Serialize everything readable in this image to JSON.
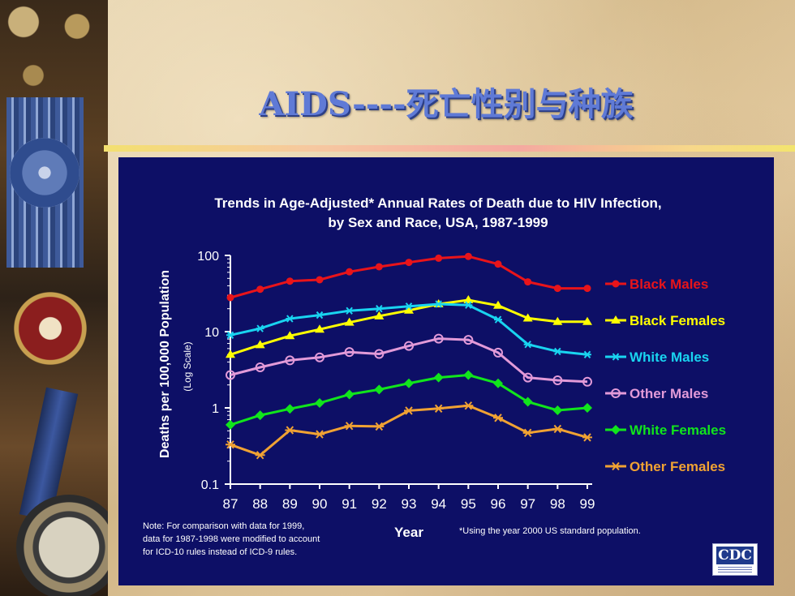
{
  "slide": {
    "title": "AIDS----死亡性别与种族"
  },
  "chart_data": {
    "type": "line",
    "title_line1": "Trends in Age-Adjusted* Annual Rates of Death due to HIV Infection,",
    "title_line2": "by Sex and Race, USA, 1987-1999",
    "ylabel": "Deaths per 100,000 Population",
    "ylabel_scale": "(Log Scale)",
    "xlabel": "Year",
    "yscale": "log",
    "ylim": [
      0.1,
      100
    ],
    "yticks": [
      100,
      10,
      1,
      0.1
    ],
    "ytick_labels": [
      "100",
      "10",
      "1",
      "0.1"
    ],
    "x": [
      "87",
      "88",
      "89",
      "90",
      "91",
      "92",
      "93",
      "94",
      "95",
      "96",
      "97",
      "98",
      "99"
    ],
    "legend_position": "right",
    "series": [
      {
        "name": "Black Males",
        "color": "#e8141a",
        "marker": "circle-filled",
        "values": [
          28,
          36,
          46,
          48,
          61,
          71,
          81,
          92,
          97,
          77,
          45,
          37,
          37
        ]
      },
      {
        "name": "Black Females",
        "color": "#ffff00",
        "marker": "triangle",
        "values": [
          5,
          6.7,
          8.8,
          10.7,
          13.2,
          16,
          19,
          23,
          26,
          22,
          15,
          13.5,
          13.5
        ]
      },
      {
        "name": "White Males",
        "color": "#19d4f0",
        "marker": "asterisk",
        "values": [
          9,
          11,
          14.8,
          16.5,
          18.8,
          20,
          21.5,
          23,
          22.3,
          14.4,
          6.8,
          5.5,
          5
        ]
      },
      {
        "name": "Other Males",
        "color": "#e29ad8",
        "marker": "circle-open",
        "values": [
          2.7,
          3.4,
          4.2,
          4.6,
          5.4,
          5.1,
          6.5,
          8.1,
          7.8,
          5.3,
          2.5,
          2.3,
          2.2
        ]
      },
      {
        "name": "White Females",
        "color": "#11e51c",
        "marker": "diamond",
        "values": [
          0.6,
          0.8,
          0.97,
          1.16,
          1.5,
          1.74,
          2.1,
          2.5,
          2.7,
          2.1,
          1.2,
          0.93,
          1.0
        ]
      },
      {
        "name": "Other Females",
        "color": "#f0a233",
        "marker": "star",
        "values": [
          0.33,
          0.24,
          0.51,
          0.45,
          0.58,
          0.57,
          0.92,
          0.98,
          1.07,
          0.74,
          0.47,
          0.53,
          0.41
        ]
      }
    ],
    "note_lines": [
      "Note:  For comparison with data for 1999,",
      "data for 1987-1998 were modified to account",
      "for ICD-10 rules instead of ICD-9 rules."
    ],
    "footnote": "*Using the year 2000 US standard population.",
    "logo_text": "CDC"
  }
}
